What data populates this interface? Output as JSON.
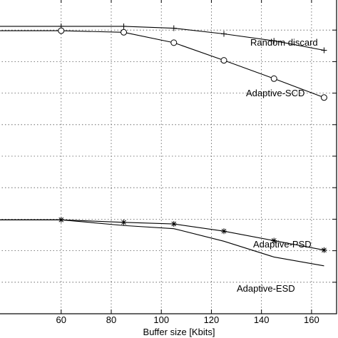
{
  "chart_data": {
    "type": "line",
    "xlabel": "Buffer size [Kbits]",
    "ylabel": "",
    "title": "",
    "xlim": [
      35,
      170
    ],
    "ylim": [
      0,
      10
    ],
    "grid": true,
    "x_ticks": [
      60,
      80,
      100,
      120,
      140,
      160
    ],
    "series": [
      {
        "name": "Random discard",
        "marker": "plus",
        "x": [
          35,
          60,
          85,
          105,
          125,
          145,
          165
        ],
        "y": [
          9.12,
          9.12,
          9.12,
          9.06,
          8.88,
          8.66,
          8.36
        ]
      },
      {
        "name": "Adaptive-SCD",
        "marker": "circle",
        "x": [
          35,
          60,
          85,
          105,
          125,
          145,
          165
        ],
        "y": [
          8.98,
          8.98,
          8.93,
          8.6,
          8.04,
          7.46,
          6.86
        ]
      },
      {
        "name": "Adaptive-PSD",
        "marker": "star",
        "x": [
          35,
          60,
          85,
          105,
          125,
          145,
          165
        ],
        "y": [
          2.98,
          2.98,
          2.9,
          2.85,
          2.62,
          2.32,
          2.02
        ]
      },
      {
        "name": "Adaptive-ESD",
        "marker": "none",
        "x": [
          35,
          60,
          85,
          105,
          125,
          145,
          165
        ],
        "y": [
          2.98,
          2.98,
          2.8,
          2.7,
          2.3,
          1.8,
          1.52
        ]
      }
    ]
  }
}
